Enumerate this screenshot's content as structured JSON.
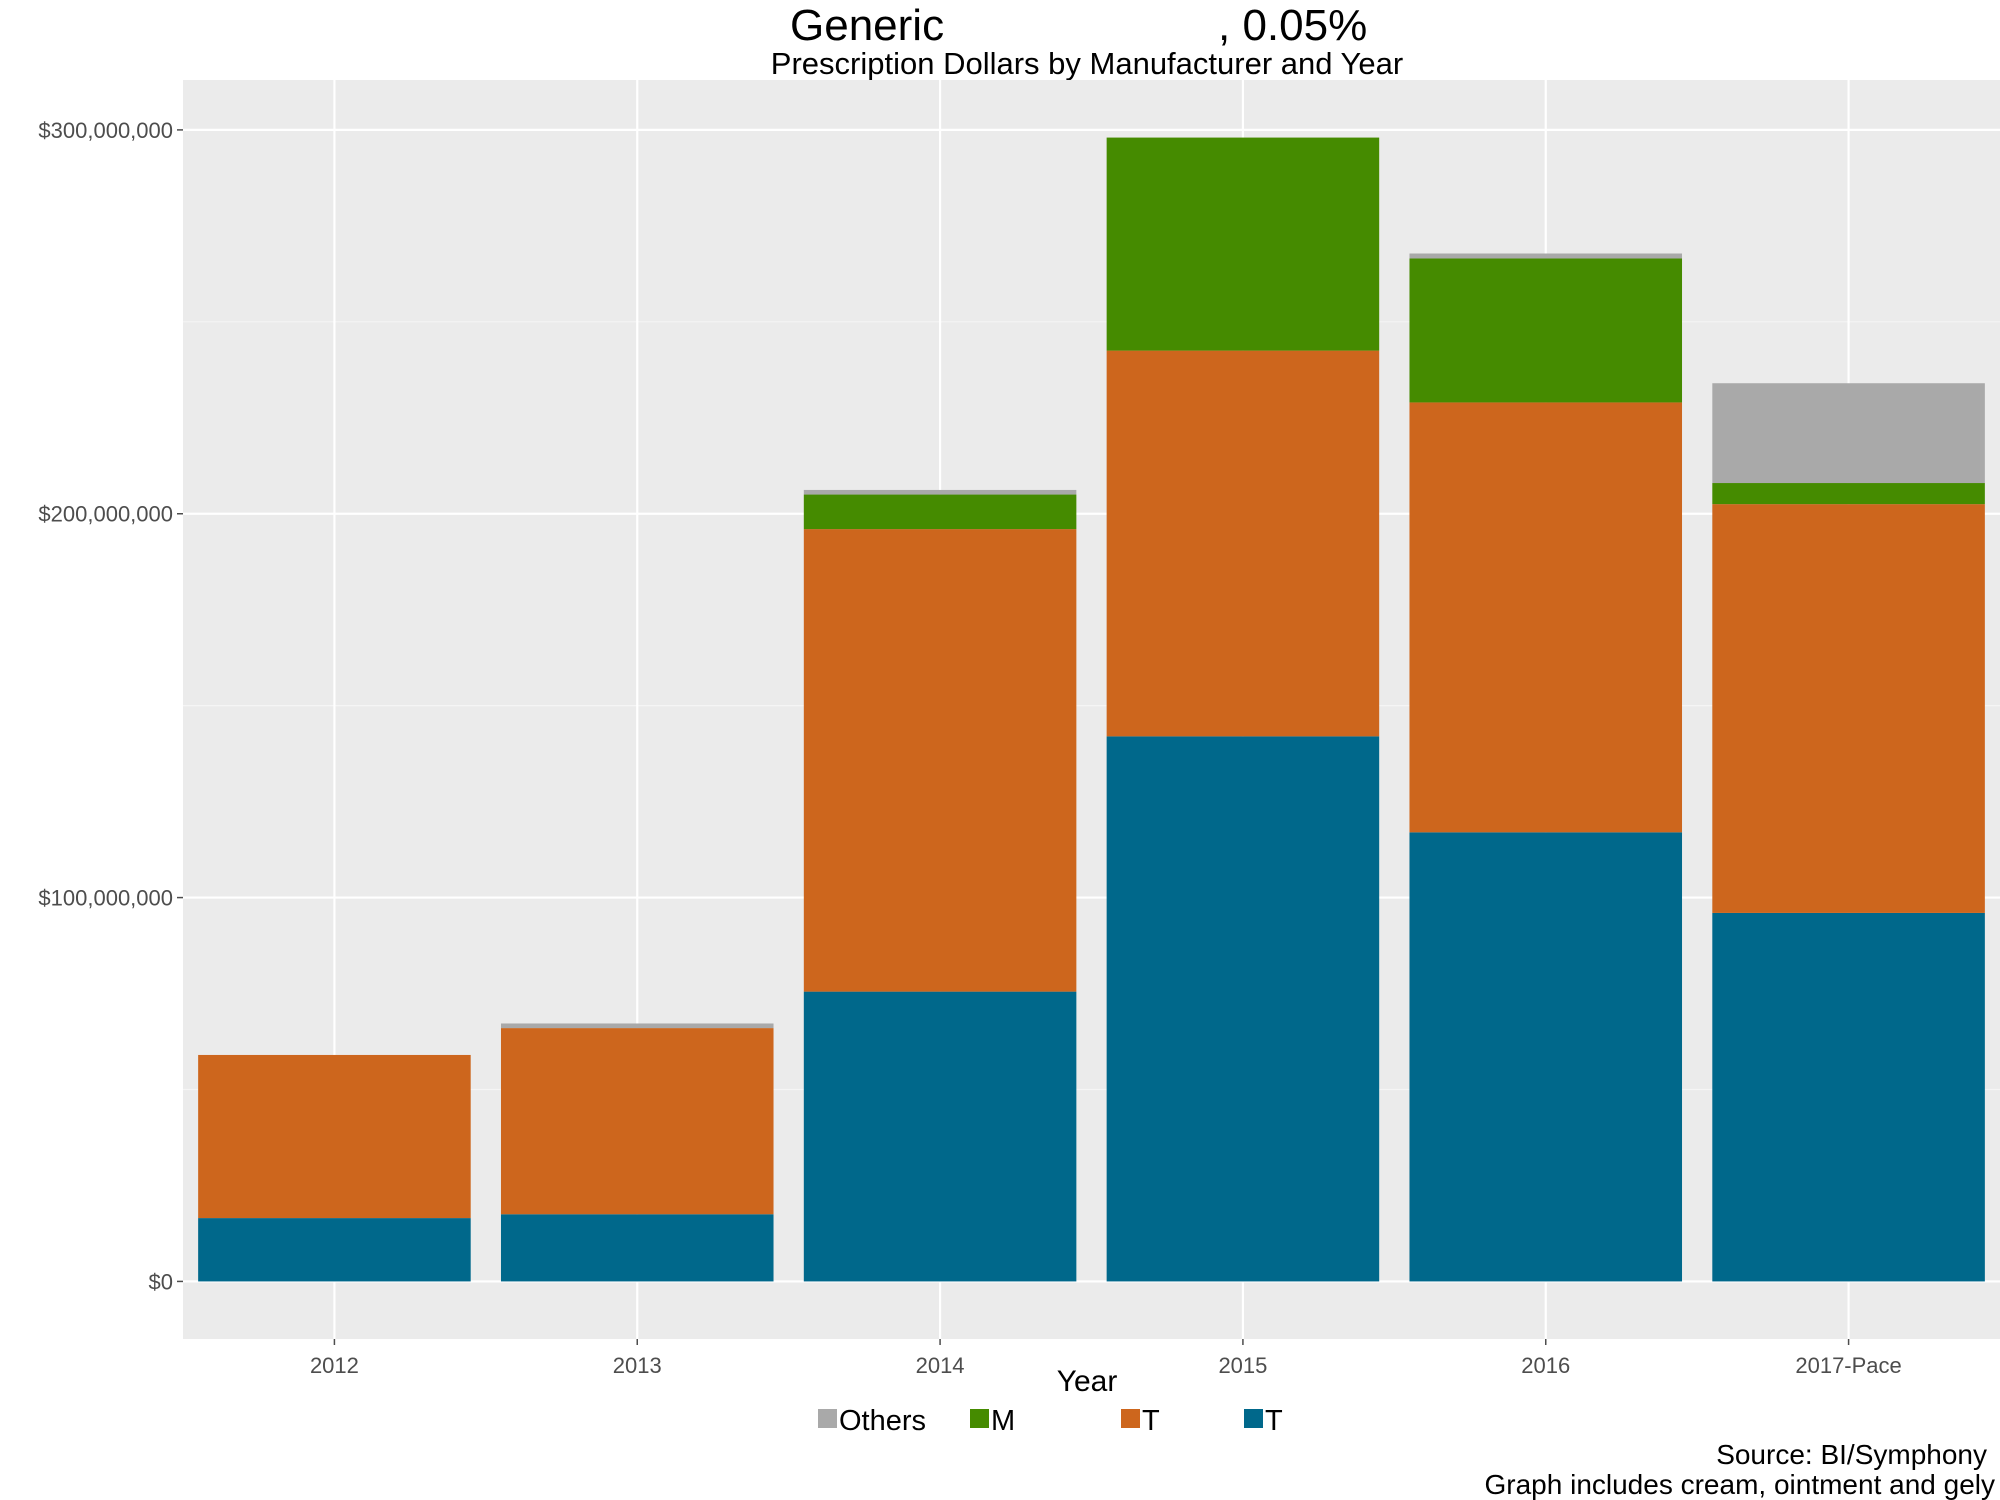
{
  "chart_data": {
    "type": "bar",
    "stacked": true,
    "title_left": "Generic",
    "title_right": ", 0.05%",
    "subtitle": "Prescription Dollars by Manufacturer and Year",
    "xlabel": "Year",
    "ylabel": "",
    "categories": [
      "2012",
      "2013",
      "2014",
      "2015",
      "2016",
      "2017-Pace"
    ],
    "ylim": [
      -15000000,
      313000000
    ],
    "y_ticks": [
      0,
      100000000,
      200000000,
      300000000
    ],
    "y_tick_labels": [
      "$0",
      "$100,000,000",
      "$200,000,000",
      "$300,000,000"
    ],
    "grid": true,
    "legend_position": "bottom",
    "series": [
      {
        "name": "T",
        "color": "#00688b",
        "values": [
          16500000,
          17500000,
          75500000,
          142000000,
          117000000,
          96000000
        ]
      },
      {
        "name": "T",
        "color": "#cd661d",
        "values": [
          42500000,
          48500000,
          120500000,
          100500000,
          112000000,
          106500000
        ]
      },
      {
        "name": "M",
        "color": "#458b00",
        "values": [
          0,
          0,
          9000000,
          55500000,
          37500000,
          5500000
        ]
      },
      {
        "name": "Others",
        "color": "#a9a9a9",
        "values": [
          0,
          1200000,
          1200000,
          0,
          1300000,
          26000000
        ]
      }
    ],
    "legend_order": [
      {
        "label": "Others",
        "color": "#a9a9a9"
      },
      {
        "label": "M",
        "color": "#458b00"
      },
      {
        "label": "T",
        "color": "#cd661d"
      },
      {
        "label": "T",
        "color": "#00688b"
      }
    ]
  },
  "caption": {
    "source": "Source: BI/Symphony",
    "note": "Graph includes cream, ointment and gely"
  }
}
